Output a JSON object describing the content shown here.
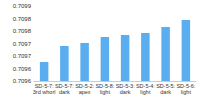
{
  "chart_data": {
    "type": "bar",
    "categories": [
      "SD-5-7:\n3rd whorl",
      "SD-5-7:\ndark",
      "SD-5-2:\napex",
      "SD-5-8:\nlight",
      "SD-5-3:\ndark",
      "SD-5-4:\nlight",
      "SD-5-5:\ndark",
      "SD-5-6:\nlight"
    ],
    "values": [
      0.709676,
      0.70974,
      0.709752,
      0.709776,
      0.709784,
      0.709792,
      0.709816,
      0.709844
    ],
    "color": "#5aaef0",
    "ylim": [
      0.7096,
      0.7099
    ],
    "yticks": [
      {
        "value": 0.7096,
        "label": "0.7096"
      },
      {
        "value": 0.70965,
        "label": "0.7096"
      },
      {
        "value": 0.7097,
        "label": "0.7097"
      },
      {
        "value": 0.70975,
        "label": "0.7097"
      },
      {
        "value": 0.7098,
        "label": "0.7098"
      },
      {
        "value": 0.70985,
        "label": "0.7098"
      },
      {
        "value": 0.7099,
        "label": "0.7099"
      }
    ],
    "grid": false
  }
}
